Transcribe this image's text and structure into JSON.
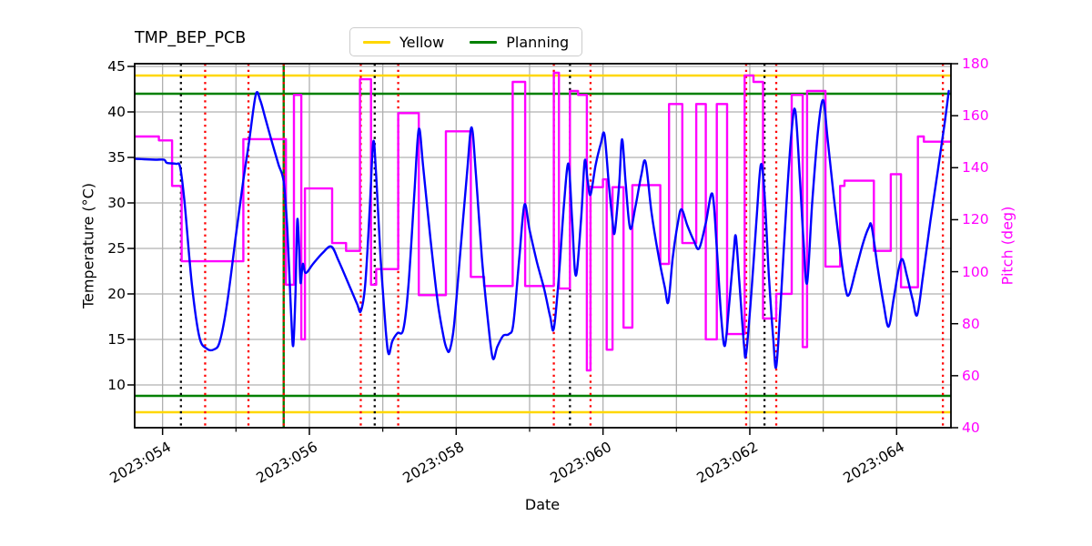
{
  "title": "TMP_BEP_PCB",
  "legend": {
    "items": [
      {
        "label": "Yellow",
        "color": "#ffd700"
      },
      {
        "label": "Planning",
        "color": "#008000"
      }
    ]
  },
  "chart_data": {
    "type": "line",
    "title": "TMP_BEP_PCB",
    "xlabel": "Date",
    "ylabel_left": "Temperature (°C)",
    "ylabel_right": "Pitch (deg)",
    "xlim": [
      53.62,
      64.74
    ],
    "ylim_left": [
      5.3,
      45.3
    ],
    "ylim_right": [
      40,
      180
    ],
    "grid": true,
    "legend_position": "top-center-outside",
    "x_tick_labels": [
      "2023:054",
      "2023:056",
      "2023:058",
      "2023:060",
      "2023:062",
      "2023:064"
    ],
    "x_tick_days": [
      54,
      56,
      58,
      60,
      62,
      64
    ],
    "x_minor_tick_days": [
      55,
      57,
      59,
      61,
      63
    ],
    "y_left_ticks": [
      10,
      15,
      20,
      25,
      30,
      35,
      40,
      45
    ],
    "y_right_ticks": [
      40,
      60,
      80,
      100,
      120,
      140,
      160,
      180
    ],
    "colors": {
      "temperature": "#0000ff",
      "pitch": "#ff00ff",
      "yellow_limit": "#ffd700",
      "planning_limit": "#008000",
      "red_vline": "#ff0000",
      "black_vline": "#000000",
      "grid": "#b0b0b0"
    },
    "series": [
      {
        "name": "Temperature",
        "axis": "left",
        "style": "smooth",
        "color_key": "temperature",
        "points": [
          [
            53.62,
            34.85
          ],
          [
            53.75,
            34.8
          ],
          [
            53.9,
            34.75
          ],
          [
            54.02,
            34.75
          ],
          [
            54.06,
            34.4
          ],
          [
            54.18,
            34.3
          ],
          [
            54.24,
            33.9
          ],
          [
            54.3,
            30
          ],
          [
            54.4,
            21
          ],
          [
            54.5,
            15.3
          ],
          [
            54.6,
            14.0
          ],
          [
            54.7,
            13.9
          ],
          [
            54.78,
            14.8
          ],
          [
            54.88,
            19
          ],
          [
            55.0,
            26.5
          ],
          [
            55.1,
            32.5
          ],
          [
            55.18,
            36.8
          ],
          [
            55.27,
            41.9
          ],
          [
            55.33,
            41.3
          ],
          [
            55.4,
            39.3
          ],
          [
            55.5,
            36.4
          ],
          [
            55.58,
            34.2
          ],
          [
            55.65,
            32.3
          ],
          [
            55.7,
            27
          ],
          [
            55.75,
            18
          ],
          [
            55.78,
            14.3
          ],
          [
            55.81,
            20
          ],
          [
            55.835,
            28.1
          ],
          [
            55.86,
            25
          ],
          [
            55.88,
            21.2
          ],
          [
            55.91,
            23.3
          ],
          [
            55.95,
            22.3
          ],
          [
            56.05,
            23.3
          ],
          [
            56.18,
            24.5
          ],
          [
            56.3,
            25.2
          ],
          [
            56.4,
            23.6
          ],
          [
            56.55,
            20.8
          ],
          [
            56.65,
            18.9
          ],
          [
            56.7,
            18.1
          ],
          [
            56.76,
            21
          ],
          [
            56.82,
            29
          ],
          [
            56.87,
            36.7
          ],
          [
            56.91,
            33
          ],
          [
            56.97,
            24
          ],
          [
            57.04,
            16
          ],
          [
            57.08,
            13.4
          ],
          [
            57.13,
            14.8
          ],
          [
            57.2,
            15.7
          ],
          [
            57.28,
            16.1
          ],
          [
            57.35,
            21
          ],
          [
            57.43,
            31
          ],
          [
            57.49,
            38.1
          ],
          [
            57.55,
            34
          ],
          [
            57.65,
            26
          ],
          [
            57.75,
            19
          ],
          [
            57.83,
            15.2
          ],
          [
            57.87,
            14.0
          ],
          [
            57.91,
            13.8
          ],
          [
            57.97,
            16.5
          ],
          [
            58.06,
            25
          ],
          [
            58.15,
            33.5
          ],
          [
            58.21,
            38.3
          ],
          [
            58.27,
            33
          ],
          [
            58.35,
            24
          ],
          [
            58.44,
            16.5
          ],
          [
            58.5,
            12.9
          ],
          [
            58.56,
            14.2
          ],
          [
            58.64,
            15.4
          ],
          [
            58.72,
            15.6
          ],
          [
            58.78,
            16.8
          ],
          [
            58.86,
            24
          ],
          [
            58.93,
            29.8
          ],
          [
            59.0,
            27
          ],
          [
            59.1,
            23.5
          ],
          [
            59.2,
            20.5
          ],
          [
            59.28,
            17.5
          ],
          [
            59.33,
            16.2
          ],
          [
            59.4,
            22
          ],
          [
            59.47,
            30
          ],
          [
            59.53,
            34.3
          ],
          [
            59.58,
            28
          ],
          [
            59.63,
            22.0
          ],
          [
            59.7,
            28
          ],
          [
            59.75,
            34.6
          ],
          [
            59.79,
            32.5
          ],
          [
            59.83,
            30.9
          ],
          [
            59.9,
            34.2
          ],
          [
            59.97,
            36.5
          ],
          [
            60.02,
            37.5
          ],
          [
            60.08,
            32
          ],
          [
            60.13,
            28
          ],
          [
            60.16,
            26.8
          ],
          [
            60.22,
            32
          ],
          [
            60.26,
            37
          ],
          [
            60.31,
            32
          ],
          [
            60.37,
            27.2
          ],
          [
            60.44,
            29.5
          ],
          [
            60.52,
            33
          ],
          [
            60.58,
            34.5
          ],
          [
            60.66,
            29
          ],
          [
            60.76,
            24
          ],
          [
            60.84,
            20.8
          ],
          [
            60.89,
            19.1
          ],
          [
            60.95,
            24
          ],
          [
            61.02,
            27.8
          ],
          [
            61.07,
            29.3
          ],
          [
            61.15,
            27.5
          ],
          [
            61.24,
            25.8
          ],
          [
            61.31,
            25.0
          ],
          [
            61.4,
            27.8
          ],
          [
            61.49,
            31.0
          ],
          [
            61.55,
            25
          ],
          [
            61.61,
            17.5
          ],
          [
            61.66,
            14.3
          ],
          [
            61.72,
            19
          ],
          [
            61.78,
            24.5
          ],
          [
            61.81,
            26.3
          ],
          [
            61.86,
            21
          ],
          [
            61.92,
            14.5
          ],
          [
            61.95,
            13.4
          ],
          [
            62.02,
            20
          ],
          [
            62.09,
            28
          ],
          [
            62.15,
            34.2
          ],
          [
            62.2,
            31
          ],
          [
            62.26,
            22
          ],
          [
            62.32,
            15
          ],
          [
            62.36,
            12.0
          ],
          [
            62.42,
            19
          ],
          [
            62.5,
            30
          ],
          [
            62.57,
            38
          ],
          [
            62.62,
            40.1
          ],
          [
            62.68,
            33
          ],
          [
            62.73,
            26
          ],
          [
            62.78,
            21.2
          ],
          [
            62.85,
            30
          ],
          [
            62.93,
            38
          ],
          [
            63.0,
            41.3
          ],
          [
            63.06,
            37
          ],
          [
            63.14,
            31
          ],
          [
            63.22,
            25.5
          ],
          [
            63.3,
            20.8
          ],
          [
            63.35,
            19.9
          ],
          [
            63.44,
            22.5
          ],
          [
            63.54,
            25.5
          ],
          [
            63.62,
            27.3
          ],
          [
            63.66,
            27.4
          ],
          [
            63.74,
            23
          ],
          [
            63.82,
            19
          ],
          [
            63.89,
            16.4
          ],
          [
            63.96,
            19.5
          ],
          [
            64.03,
            22.8
          ],
          [
            64.08,
            23.8
          ],
          [
            64.14,
            22
          ],
          [
            64.22,
            19.3
          ],
          [
            64.28,
            17.7
          ],
          [
            64.36,
            22
          ],
          [
            64.46,
            28
          ],
          [
            64.56,
            33.5
          ],
          [
            64.65,
            38.5
          ],
          [
            64.71,
            42.3
          ]
        ]
      },
      {
        "name": "Pitch",
        "axis": "right",
        "style": "steps",
        "color_key": "pitch",
        "segments": [
          [
            53.62,
            53.95,
            152
          ],
          [
            53.95,
            54.13,
            150.5
          ],
          [
            54.13,
            54.26,
            133
          ],
          [
            54.26,
            55.1,
            104
          ],
          [
            55.1,
            55.68,
            151
          ],
          [
            55.68,
            55.79,
            95
          ],
          [
            55.79,
            55.89,
            168
          ],
          [
            55.89,
            55.94,
            74
          ],
          [
            55.94,
            56.31,
            132
          ],
          [
            56.31,
            56.5,
            111
          ],
          [
            56.5,
            56.69,
            108
          ],
          [
            56.69,
            56.84,
            174
          ],
          [
            56.84,
            56.91,
            95
          ],
          [
            56.91,
            57.21,
            101
          ],
          [
            57.21,
            57.49,
            161
          ],
          [
            57.49,
            57.86,
            91
          ],
          [
            57.86,
            58.2,
            154
          ],
          [
            58.2,
            58.38,
            98
          ],
          [
            58.38,
            58.77,
            94.5
          ],
          [
            58.77,
            58.94,
            173
          ],
          [
            58.94,
            59.33,
            94.5
          ],
          [
            59.33,
            59.4,
            176.5
          ],
          [
            59.4,
            59.55,
            93.5
          ],
          [
            59.55,
            59.66,
            169.5
          ],
          [
            59.66,
            59.78,
            168
          ],
          [
            59.78,
            59.83,
            62
          ],
          [
            59.83,
            60.0,
            132.5
          ],
          [
            60.0,
            60.05,
            135.5
          ],
          [
            60.05,
            60.13,
            70
          ],
          [
            60.13,
            60.28,
            132.5
          ],
          [
            60.28,
            60.4,
            78.5
          ],
          [
            60.4,
            60.78,
            133.3
          ],
          [
            60.78,
            60.9,
            103
          ],
          [
            60.9,
            61.08,
            164.5
          ],
          [
            61.08,
            61.27,
            111
          ],
          [
            61.27,
            61.4,
            164.5
          ],
          [
            61.4,
            61.55,
            74
          ],
          [
            61.55,
            61.69,
            164.5
          ],
          [
            61.69,
            61.93,
            76
          ],
          [
            61.93,
            62.05,
            175.5
          ],
          [
            62.05,
            62.18,
            173
          ],
          [
            62.18,
            62.36,
            82
          ],
          [
            62.36,
            62.57,
            91.5
          ],
          [
            62.57,
            62.72,
            168
          ],
          [
            62.72,
            62.78,
            71
          ],
          [
            62.78,
            63.03,
            169.5
          ],
          [
            63.03,
            63.23,
            102
          ],
          [
            63.23,
            63.29,
            133
          ],
          [
            63.29,
            63.69,
            135
          ],
          [
            63.69,
            63.92,
            108
          ],
          [
            63.92,
            64.06,
            137.5
          ],
          [
            64.06,
            64.29,
            94
          ],
          [
            64.29,
            64.37,
            152
          ],
          [
            64.37,
            64.74,
            150
          ]
        ]
      }
    ],
    "limit_lines": [
      {
        "name": "Yellow",
        "color_key": "yellow_limit",
        "values": [
          44,
          7
        ]
      },
      {
        "name": "Planning",
        "color_key": "planning_limit",
        "values": [
          42,
          8.8
        ]
      }
    ],
    "vlines": {
      "black_dotted": [
        54.25,
        56.89,
        59.55,
        62.2
      ],
      "red_dotted": [
        54.58,
        55.17,
        56.7,
        57.21,
        59.33,
        59.83,
        61.95,
        62.36,
        64.63
      ],
      "green_solid_with_red_dotted": [
        55.65
      ]
    }
  }
}
